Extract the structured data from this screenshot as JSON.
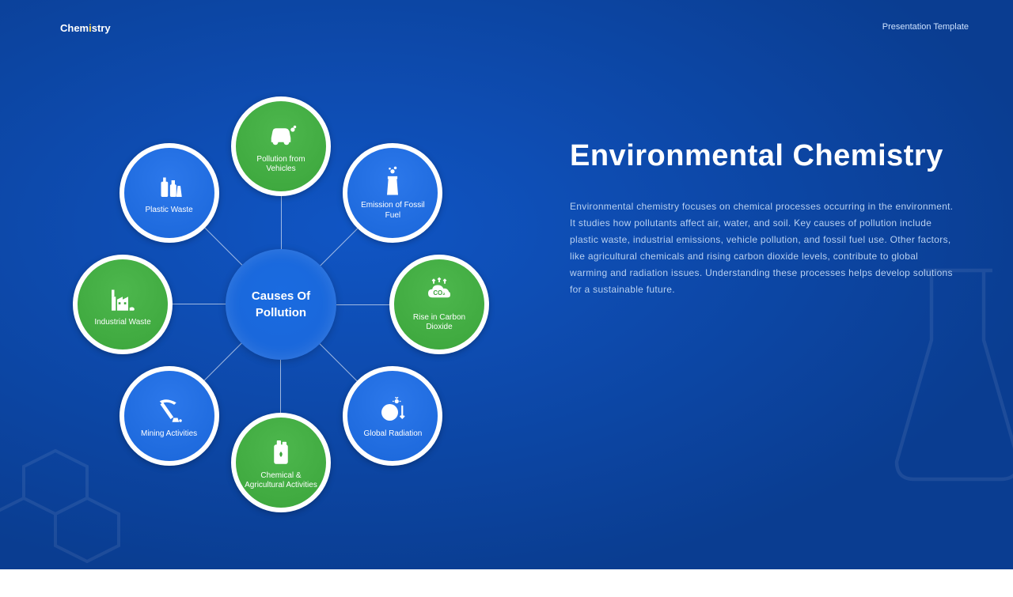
{
  "colors": {
    "bg_gradient_start": "#0a3d91",
    "bg_gradient_end": "#1055c4",
    "green": "#3ba53b",
    "blue_circle": "#1a66d9",
    "center_blue": "#1a6be0",
    "header_accent": "#cfe3ff",
    "body_text": "#b8d0f0"
  },
  "header": {
    "left": "Chemistry",
    "right": "Presentation Template"
  },
  "content": {
    "title": "Environmental Chemistry",
    "body": "Environmental chemistry focuses on chemical processes occurring in the environment. It studies how pollutants affect air, water, and soil. Key causes of pollution include plastic waste, industrial emissions, vehicle pollution, and fossil fuel use. Other factors, like agricultural chemicals and rising carbon dioxide levels, contribute to global warming and radiation issues. Understanding these processes helps develop solutions for a sustainable future."
  },
  "diagram": {
    "center_label": "Causes Of Pollution",
    "radius": 200,
    "nodes": [
      {
        "label": "Pollution from Vehicles",
        "angle": -90,
        "color": "green",
        "icon": "car"
      },
      {
        "label": "Emission of Fossil Fuel",
        "angle": -45,
        "color": "blue",
        "icon": "chimney"
      },
      {
        "label": "Rise in Carbon Dioxide",
        "angle": 0,
        "color": "green",
        "icon": "co2"
      },
      {
        "label": "Global Radiation",
        "angle": 45,
        "color": "blue",
        "icon": "globe"
      },
      {
        "label": "Chemical & Agricultural Activities",
        "angle": 90,
        "color": "green",
        "icon": "jerrycan"
      },
      {
        "label": "Mining Activities",
        "angle": 135,
        "color": "blue",
        "icon": "pickaxe"
      },
      {
        "label": "Industrial Waste",
        "angle": 180,
        "color": "green",
        "icon": "factory"
      },
      {
        "label": "Plastic Waste",
        "angle": -135,
        "color": "blue",
        "icon": "bottles"
      }
    ]
  }
}
